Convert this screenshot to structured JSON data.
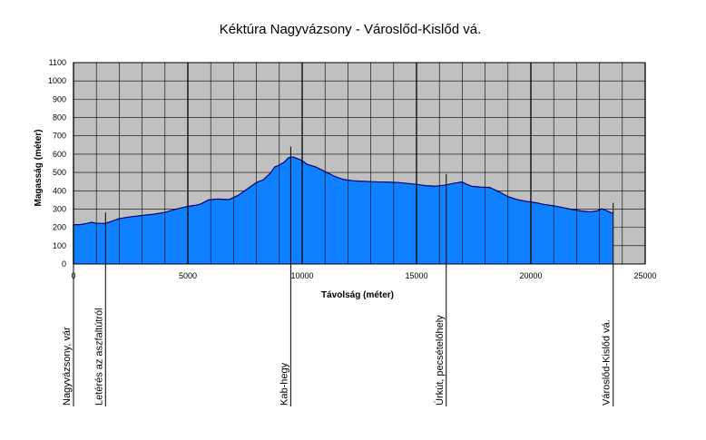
{
  "chart_data": {
    "type": "area",
    "title": "Kéktúra Nagyvázsony - Városlőd-Kislőd vá.",
    "xlabel": "Távolság (méter)",
    "ylabel": "Magasság (méter)",
    "xlim": [
      0,
      25000
    ],
    "ylim": [
      0,
      1100
    ],
    "x_ticks": [
      0,
      5000,
      10000,
      15000,
      20000,
      25000
    ],
    "y_ticks": [
      0,
      100,
      200,
      300,
      400,
      500,
      600,
      700,
      800,
      900,
      1000,
      1100
    ],
    "grid": true,
    "colors": {
      "fill": "#0f80ff",
      "line": "#00006e",
      "plot_background": "#c0c0c0",
      "grid": "#000000"
    },
    "x": [
      0,
      300,
      600,
      800,
      1000,
      1400,
      1700,
      2000,
      2500,
      3000,
      3500,
      4000,
      4500,
      5000,
      5400,
      5600,
      5900,
      6300,
      6800,
      7200,
      7600,
      8000,
      8300,
      8600,
      8800,
      9000,
      9200,
      9400,
      9600,
      9800,
      10000,
      10200,
      10600,
      11000,
      11400,
      11800,
      12200,
      12600,
      13000,
      13400,
      13800,
      14200,
      14600,
      15000,
      15400,
      15800,
      16200,
      16600,
      17000,
      17200,
      17400,
      17800,
      18200,
      18600,
      19000,
      19400,
      19800,
      20200,
      20600,
      21000,
      21400,
      21800,
      22200,
      22600,
      22900,
      23100,
      23300,
      23600
    ],
    "y": [
      215,
      215,
      222,
      228,
      222,
      222,
      235,
      248,
      258,
      265,
      272,
      282,
      300,
      315,
      322,
      330,
      350,
      355,
      352,
      375,
      410,
      445,
      460,
      495,
      530,
      540,
      555,
      580,
      585,
      575,
      565,
      545,
      530,
      505,
      480,
      462,
      455,
      452,
      450,
      448,
      447,
      445,
      440,
      435,
      428,
      425,
      430,
      440,
      448,
      435,
      425,
      420,
      418,
      395,
      368,
      352,
      342,
      335,
      325,
      318,
      308,
      298,
      290,
      285,
      290,
      302,
      292,
      275
    ],
    "landmarks": [
      {
        "x": 0,
        "label": "Nagyvázsony, vár"
      },
      {
        "x": 1400,
        "label": "Letérés az aszfaltútról"
      },
      {
        "x": 9500,
        "label": "Kab-hegy"
      },
      {
        "x": 16300,
        "label": "Úrkút, pecsételőhely"
      },
      {
        "x": 23600,
        "label": "Városlőd-Kislőd vá."
      }
    ]
  }
}
